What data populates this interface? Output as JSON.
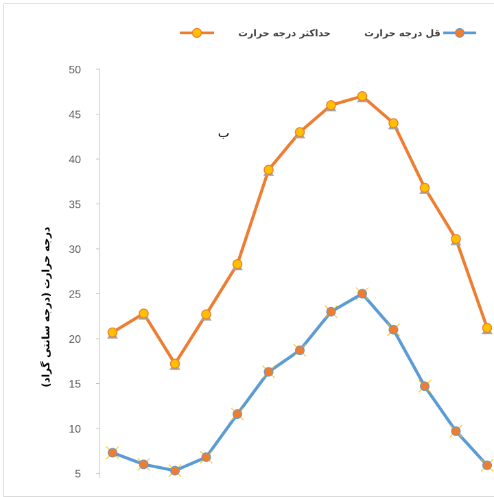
{
  "chart_data": {
    "type": "line",
    "title": "",
    "xlabel": "",
    "ylabel": "درجه حرارت (درجه سانتی گراد)",
    "ylim": [
      0,
      50
    ],
    "yticks": [
      5,
      10,
      15,
      20,
      25,
      30,
      35,
      40,
      45,
      50
    ],
    "grid": false,
    "legend_position": "top",
    "x": [
      1,
      2,
      3,
      4,
      5,
      6,
      7,
      8,
      9,
      10,
      11,
      12,
      13
    ],
    "series": [
      {
        "name": "حداکثر درجه حرارت",
        "color": "#ed7d31",
        "values": [
          20.7,
          22.8,
          17.2,
          22.7,
          28.3,
          38.8,
          43.0,
          46.0,
          47.0,
          44.0,
          36.8,
          31.1,
          21.2
        ]
      },
      {
        "name": "قل درجه حرارت",
        "color": "#5b9bd5",
        "values": [
          7.3,
          6.0,
          5.3,
          6.8,
          11.6,
          16.3,
          18.7,
          23.0,
          25.0,
          21.0,
          14.7,
          9.7,
          5.9
        ]
      }
    ],
    "annotations": [
      "ب"
    ]
  }
}
